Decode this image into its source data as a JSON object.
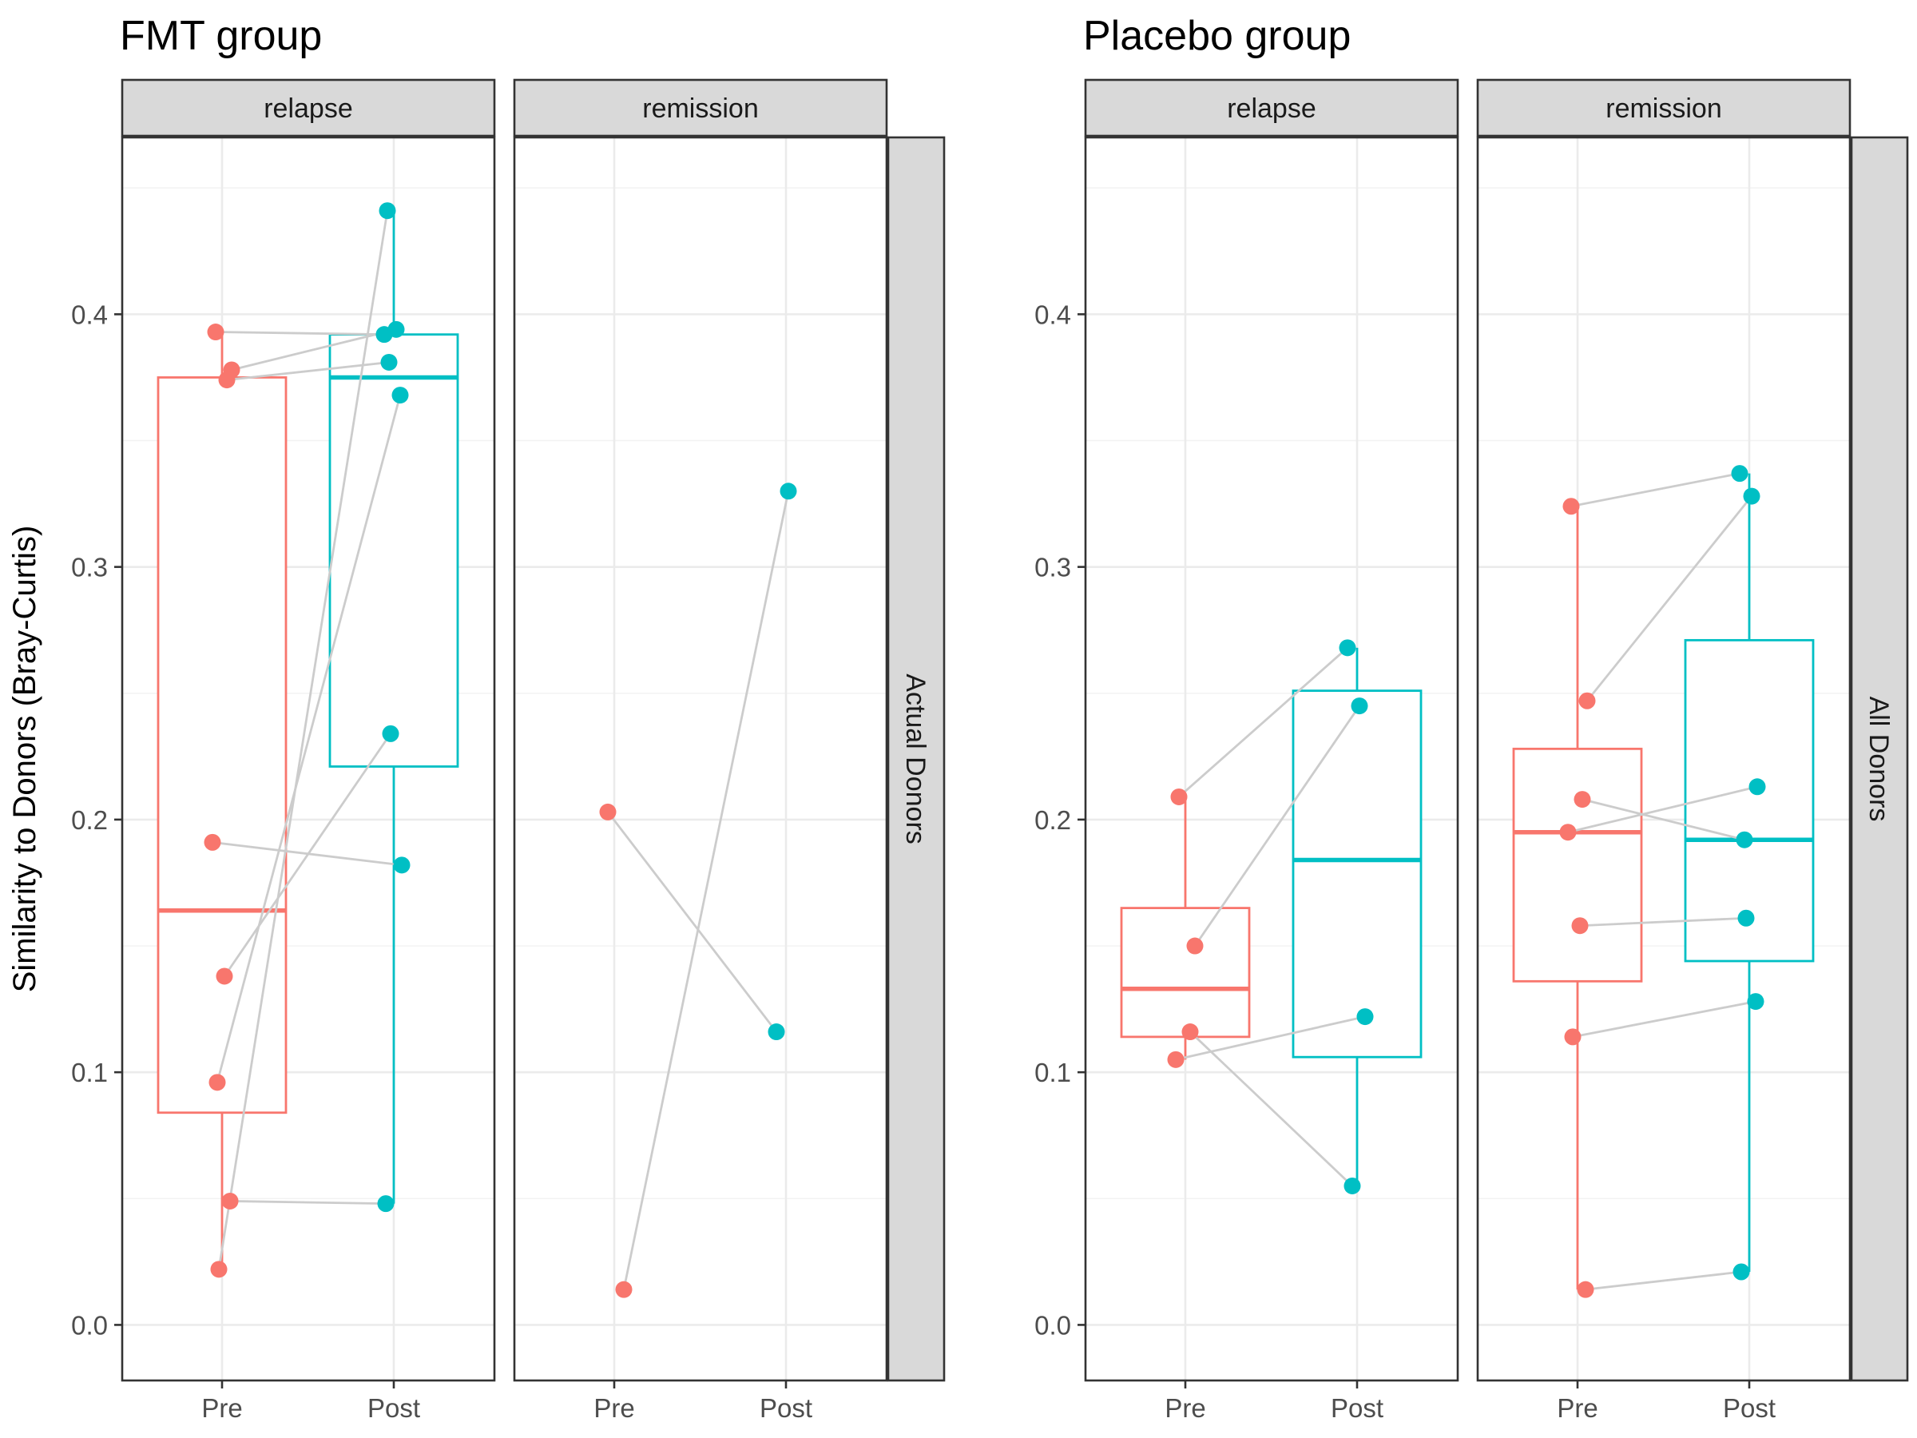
{
  "y_axis": {
    "label": "Similarity to Donors (Bray-Curtis)",
    "range": [
      -0.022,
      0.47
    ],
    "ticks": [
      0.0,
      0.1,
      0.2,
      0.3,
      0.4
    ],
    "tick_labels": [
      "0.0",
      "0.1",
      "0.2",
      "0.3",
      "0.4"
    ]
  },
  "x_axis": {
    "categories": [
      "Pre",
      "Post"
    ]
  },
  "colors": {
    "Pre": "#F8766D",
    "Post": "#00BFC4",
    "pair_line": "#cccccc"
  },
  "chart_data": [
    {
      "type": "box",
      "title": "FMT group",
      "row_strip": "Actual Donors",
      "panels": [
        {
          "strip": "relapse",
          "boxes": [
            {
              "group": "Pre",
              "lower_whisker": 0.022,
              "q1": 0.084,
              "median": 0.164,
              "q3": 0.375,
              "upper_whisker": 0.393
            },
            {
              "group": "Post",
              "lower_whisker": 0.048,
              "q1": 0.221,
              "median": 0.375,
              "q3": 0.392,
              "upper_whisker": 0.441
            }
          ],
          "pairs": [
            {
              "pre": 0.393,
              "post": 0.392
            },
            {
              "pre": 0.378,
              "post": 0.394
            },
            {
              "pre": 0.374,
              "post": 0.381
            },
            {
              "pre": 0.191,
              "post": 0.182
            },
            {
              "pre": 0.138,
              "post": 0.234
            },
            {
              "pre": 0.096,
              "post": 0.368
            },
            {
              "pre": 0.049,
              "post": 0.048
            },
            {
              "pre": 0.022,
              "post": 0.441
            }
          ]
        },
        {
          "strip": "remission",
          "boxes": [],
          "pairs": [
            {
              "pre": 0.203,
              "post": 0.116
            },
            {
              "pre": 0.014,
              "post": 0.33
            }
          ]
        }
      ]
    },
    {
      "type": "box",
      "title": "Placebo group",
      "row_strip": "All Donors",
      "panels": [
        {
          "strip": "relapse",
          "boxes": [
            {
              "group": "Pre",
              "lower_whisker": 0.105,
              "q1": 0.114,
              "median": 0.133,
              "q3": 0.165,
              "upper_whisker": 0.209
            },
            {
              "group": "Post",
              "lower_whisker": 0.055,
              "q1": 0.106,
              "median": 0.184,
              "q3": 0.251,
              "upper_whisker": 0.268
            }
          ],
          "pairs": [
            {
              "pre": 0.209,
              "post": 0.268
            },
            {
              "pre": 0.15,
              "post": 0.245
            },
            {
              "pre": 0.116,
              "post": 0.055
            },
            {
              "pre": 0.105,
              "post": 0.122
            }
          ]
        },
        {
          "strip": "remission",
          "boxes": [
            {
              "group": "Pre",
              "lower_whisker": 0.014,
              "q1": 0.136,
              "median": 0.195,
              "q3": 0.228,
              "upper_whisker": 0.324
            },
            {
              "group": "Post",
              "lower_whisker": 0.021,
              "q1": 0.144,
              "median": 0.192,
              "q3": 0.271,
              "upper_whisker": 0.337
            }
          ],
          "pairs": [
            {
              "pre": 0.324,
              "post": 0.337
            },
            {
              "pre": 0.247,
              "post": 0.328
            },
            {
              "pre": 0.208,
              "post": 0.192
            },
            {
              "pre": 0.195,
              "post": 0.213
            },
            {
              "pre": 0.158,
              "post": 0.161
            },
            {
              "pre": 0.114,
              "post": 0.128
            },
            {
              "pre": 0.014,
              "post": 0.021
            }
          ]
        }
      ]
    }
  ]
}
